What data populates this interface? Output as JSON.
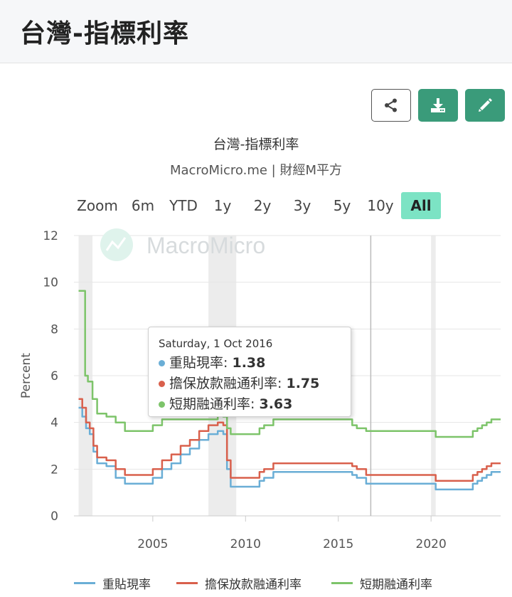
{
  "page": {
    "title": "台灣-指標利率"
  },
  "toolbar": {
    "share": "share-icon",
    "download": "download-icon",
    "edit": "pencil-icon"
  },
  "range_selector": {
    "zoom_label": "Zoom",
    "buttons": [
      "6m",
      "YTD",
      "1y",
      "2y",
      "3y",
      "5y",
      "10y",
      "All"
    ],
    "active": "All"
  },
  "watermark": "MacroMicro",
  "tooltip": {
    "date": "Saturday, 1 Oct 2016",
    "rows": [
      {
        "name": "重貼現率",
        "value": "1.38",
        "color": "#6aaed6"
      },
      {
        "name": "擔保放款融通利率",
        "value": "1.75",
        "color": "#d9604c"
      },
      {
        "name": "短期融通利率",
        "value": "3.63",
        "color": "#7dc46a"
      }
    ]
  },
  "chart_data": {
    "type": "line",
    "title": "台灣-指標利率",
    "subtitle": "MacroMicro.me | 財經M平方",
    "xlabel": "",
    "ylabel": "Percent",
    "xlim": [
      2000.75,
      2023.75
    ],
    "ylim": [
      0,
      12
    ],
    "yticks": [
      0,
      2,
      4,
      6,
      8,
      10,
      12
    ],
    "xticks": [
      2005,
      2010,
      2015,
      2020
    ],
    "grid": true,
    "legend": "bottom",
    "recession_bands": [
      [
        2001.0,
        2001.75
      ],
      [
        2008.0,
        2009.5
      ],
      [
        2020.0,
        2020.25
      ]
    ],
    "crosshair_x": 2016.75,
    "series": [
      {
        "name": "重貼現率",
        "color": "#6aaed6",
        "points": [
          [
            2001.0,
            4.63
          ],
          [
            2001.2,
            4.25
          ],
          [
            2001.4,
            3.75
          ],
          [
            2001.6,
            3.5
          ],
          [
            2001.8,
            2.75
          ],
          [
            2002.0,
            2.25
          ],
          [
            2002.5,
            2.13
          ],
          [
            2003.0,
            1.63
          ],
          [
            2003.5,
            1.38
          ],
          [
            2004.75,
            1.38
          ],
          [
            2005.0,
            1.63
          ],
          [
            2005.5,
            2.0
          ],
          [
            2006.0,
            2.25
          ],
          [
            2006.5,
            2.63
          ],
          [
            2007.0,
            2.88
          ],
          [
            2007.5,
            3.25
          ],
          [
            2008.0,
            3.5
          ],
          [
            2008.5,
            3.63
          ],
          [
            2008.8,
            3.5
          ],
          [
            2009.0,
            2.0
          ],
          [
            2009.2,
            1.25
          ],
          [
            2010.5,
            1.25
          ],
          [
            2010.75,
            1.5
          ],
          [
            2011.0,
            1.63
          ],
          [
            2011.5,
            1.88
          ],
          [
            2015.5,
            1.88
          ],
          [
            2015.75,
            1.75
          ],
          [
            2016.0,
            1.63
          ],
          [
            2016.5,
            1.38
          ],
          [
            2020.0,
            1.38
          ],
          [
            2020.25,
            1.13
          ],
          [
            2022.0,
            1.13
          ],
          [
            2022.25,
            1.38
          ],
          [
            2022.5,
            1.5
          ],
          [
            2022.75,
            1.63
          ],
          [
            2023.0,
            1.75
          ],
          [
            2023.25,
            1.88
          ],
          [
            2023.75,
            1.88
          ]
        ]
      },
      {
        "name": "擔保放款融通利率",
        "color": "#d9604c",
        "points": [
          [
            2001.0,
            5.0
          ],
          [
            2001.2,
            4.63
          ],
          [
            2001.4,
            4.0
          ],
          [
            2001.6,
            3.75
          ],
          [
            2001.8,
            3.0
          ],
          [
            2002.0,
            2.5
          ],
          [
            2002.5,
            2.38
          ],
          [
            2003.0,
            2.0
          ],
          [
            2003.5,
            1.75
          ],
          [
            2004.75,
            1.75
          ],
          [
            2005.0,
            2.0
          ],
          [
            2005.5,
            2.38
          ],
          [
            2006.0,
            2.63
          ],
          [
            2006.5,
            3.0
          ],
          [
            2007.0,
            3.25
          ],
          [
            2007.5,
            3.63
          ],
          [
            2008.0,
            3.88
          ],
          [
            2008.5,
            4.0
          ],
          [
            2008.8,
            3.88
          ],
          [
            2009.0,
            2.38
          ],
          [
            2009.2,
            1.63
          ],
          [
            2010.5,
            1.63
          ],
          [
            2010.75,
            1.88
          ],
          [
            2011.0,
            2.0
          ],
          [
            2011.5,
            2.25
          ],
          [
            2015.5,
            2.25
          ],
          [
            2015.75,
            2.13
          ],
          [
            2016.0,
            2.0
          ],
          [
            2016.5,
            1.75
          ],
          [
            2020.0,
            1.75
          ],
          [
            2020.25,
            1.5
          ],
          [
            2022.0,
            1.5
          ],
          [
            2022.25,
            1.75
          ],
          [
            2022.5,
            1.88
          ],
          [
            2022.75,
            2.0
          ],
          [
            2023.0,
            2.13
          ],
          [
            2023.25,
            2.25
          ],
          [
            2023.75,
            2.25
          ]
        ]
      },
      {
        "name": "短期融通利率",
        "color": "#7dc46a",
        "points": [
          [
            2001.0,
            9.63
          ],
          [
            2001.3,
            9.63
          ],
          [
            2001.35,
            6.0
          ],
          [
            2001.5,
            5.75
          ],
          [
            2001.75,
            5.0
          ],
          [
            2002.0,
            4.38
          ],
          [
            2002.5,
            4.25
          ],
          [
            2003.0,
            4.0
          ],
          [
            2003.5,
            3.63
          ],
          [
            2004.75,
            3.63
          ],
          [
            2005.0,
            3.88
          ],
          [
            2005.5,
            4.13
          ],
          [
            2008.5,
            4.38
          ],
          [
            2008.8,
            4.25
          ],
          [
            2009.0,
            3.75
          ],
          [
            2009.2,
            3.5
          ],
          [
            2010.5,
            3.5
          ],
          [
            2010.75,
            3.75
          ],
          [
            2011.0,
            3.88
          ],
          [
            2011.5,
            4.13
          ],
          [
            2015.5,
            4.13
          ],
          [
            2015.75,
            3.88
          ],
          [
            2016.0,
            3.75
          ],
          [
            2016.5,
            3.63
          ],
          [
            2020.0,
            3.63
          ],
          [
            2020.25,
            3.38
          ],
          [
            2022.0,
            3.38
          ],
          [
            2022.25,
            3.63
          ],
          [
            2022.5,
            3.75
          ],
          [
            2022.75,
            3.88
          ],
          [
            2023.0,
            4.0
          ],
          [
            2023.25,
            4.13
          ],
          [
            2023.75,
            4.13
          ]
        ]
      }
    ]
  }
}
